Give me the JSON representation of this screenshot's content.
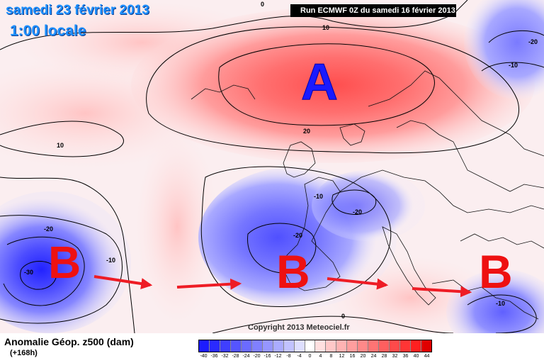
{
  "header": {
    "date": "samedi 23 février 2013",
    "time": "1:00 locale",
    "run": "Run ECMWF 0Z du samedi 16 février 2013"
  },
  "copyright": "Copyright 2013 Meteociel.fr",
  "footer": {
    "label": "Anomalie Géop. z500 (dam)",
    "lead": "(+168h)"
  },
  "centers": {
    "high": "A",
    "low1": "B",
    "low2": "B",
    "low3": "B"
  },
  "contour_labels": {
    "c_top": "0",
    "c10_a": "10",
    "c20_a": "20",
    "c10_b": "10",
    "c_m20_ne": "-20",
    "c_m10_ne": "-10",
    "c_m20_w": "-20",
    "c_m30_w": "-30",
    "c_m10_w": "-10",
    "c_m10_c": "-10",
    "c_m20_c": "-20",
    "c_m20_f": "-20",
    "c_m10_se": "-10",
    "c_0_s": "0"
  },
  "colors": {
    "high": "#ff5a5a",
    "low": "#3333ff",
    "arrow": "#ee1c25",
    "center_high": "#1a1aff",
    "center_low": "#ee1111"
  },
  "scale": {
    "ticks": [
      "-40",
      "-36",
      "-32",
      "-28",
      "-24",
      "-20",
      "-16",
      "-12",
      "-8",
      "-4",
      "0",
      "4",
      "8",
      "12",
      "16",
      "20",
      "24",
      "28",
      "32",
      "36",
      "40",
      "44"
    ],
    "colors": [
      "#1c1cff",
      "#2a2aff",
      "#3f3fff",
      "#5555ff",
      "#6b6bff",
      "#8080ff",
      "#9696ff",
      "#abacff",
      "#c1c2ff",
      "#dedfff",
      "#ffffff",
      "#ffe0e0",
      "#ffc8c8",
      "#ffb3b3",
      "#ff9e9e",
      "#ff8989",
      "#ff7474",
      "#ff5f5f",
      "#ff4a4a",
      "#ff3535",
      "#ff2020",
      "#e00000"
    ]
  }
}
